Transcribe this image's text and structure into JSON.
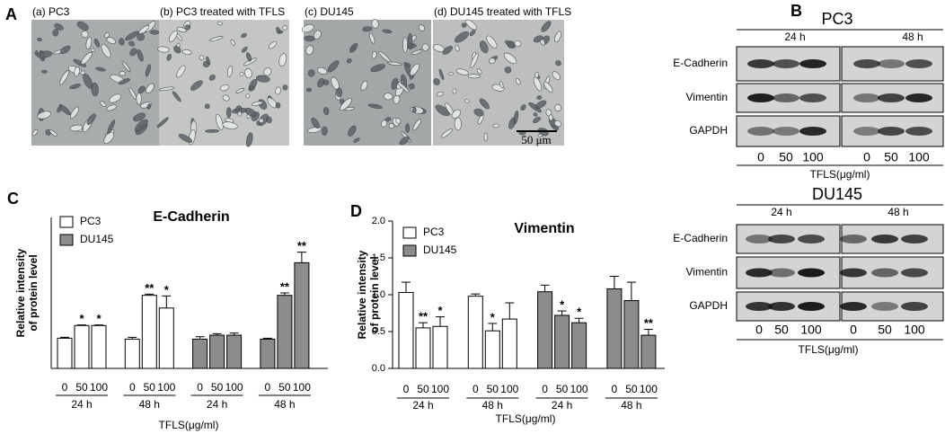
{
  "panel_a": {
    "letter": "A",
    "images": [
      "(a) PC3",
      "(b) PC3 treated with TFLS",
      "(c) DU145",
      "(d) DU145 treated with TFLS"
    ],
    "scale_bar": "50 μm"
  },
  "panel_b": {
    "letter": "B",
    "blots": [
      {
        "cell_line": "PC3",
        "times": [
          "24 h",
          "48 h"
        ],
        "proteins": [
          "E-Cadherin",
          "Vimentin",
          "GAPDH"
        ],
        "doses": [
          "0",
          "50",
          "100",
          "0",
          "50",
          "100"
        ],
        "xlabel": "TFLS(μg/ml)"
      },
      {
        "cell_line": "DU145",
        "times": [
          "24 h",
          "48 h"
        ],
        "proteins": [
          "E-Cadherin",
          "Vimentin",
          "GAPDH"
        ],
        "doses": [
          "0",
          "50",
          "100",
          "0",
          "50",
          "100"
        ],
        "xlabel": "TFLS(μg/ml)"
      }
    ]
  },
  "chart_data": [
    {
      "type": "bar",
      "panel": "C",
      "title": "E-Cadherin",
      "ylabel": [
        "Relative intensity",
        "of protein level"
      ],
      "xlabel": "TFLS(μg/ml)",
      "categories": [
        "0",
        "50",
        "100",
        "0",
        "50",
        "100",
        "0",
        "50",
        "100",
        "0",
        "50",
        "100"
      ],
      "groups": [
        "24 h",
        "48 h",
        "24 h",
        "48 h"
      ],
      "series": [
        {
          "name": "PC3",
          "color": "#ffffff",
          "values": [
            1.0,
            1.42,
            1.42,
            0.97,
            2.42,
            2.0,
            null,
            null,
            null,
            null,
            null,
            null
          ],
          "errors": [
            0.03,
            0.02,
            0.02,
            0.06,
            0.04,
            0.4,
            null,
            null,
            null,
            null,
            null,
            null
          ],
          "annotations": [
            null,
            "*",
            "*",
            null,
            "**",
            "*",
            null,
            null,
            null,
            null,
            null,
            null
          ]
        },
        {
          "name": "DU145",
          "color": "#8c8c8c",
          "values": [
            null,
            null,
            null,
            null,
            null,
            null,
            0.97,
            1.1,
            1.1,
            0.97,
            2.42,
            3.5
          ],
          "errors": [
            null,
            null,
            null,
            null,
            null,
            null,
            0.08,
            0.05,
            0.07,
            0.03,
            0.08,
            0.35
          ],
          "annotations": [
            null,
            null,
            null,
            null,
            null,
            null,
            null,
            null,
            null,
            null,
            "**",
            "**"
          ]
        }
      ],
      "ylim": [
        0,
        5
      ],
      "legend": "upper left"
    },
    {
      "type": "bar",
      "panel": "D",
      "title": "Vimentin",
      "ylabel": [
        "Relative intensity",
        "of protein level"
      ],
      "xlabel": "TFLS(μg/ml)",
      "categories": [
        "0",
        "50",
        "100",
        "0",
        "50",
        "100",
        "0",
        "50",
        "100",
        "0",
        "50",
        "100"
      ],
      "groups": [
        "24 h",
        "48 h",
        "24 h",
        "48 h"
      ],
      "series": [
        {
          "name": "PC3",
          "color": "#ffffff",
          "values": [
            1.03,
            0.55,
            0.57,
            0.98,
            0.51,
            0.67,
            null,
            null,
            null,
            null,
            null,
            null
          ],
          "errors": [
            0.14,
            0.07,
            0.13,
            0.03,
            0.1,
            0.22,
            null,
            null,
            null,
            null,
            null,
            null
          ],
          "annotations": [
            null,
            "**",
            "*",
            null,
            "*",
            null,
            null,
            null,
            null,
            null,
            null,
            null
          ]
        },
        {
          "name": "DU145",
          "color": "#8c8c8c",
          "values": [
            null,
            null,
            null,
            null,
            null,
            null,
            1.04,
            0.72,
            0.62,
            1.08,
            0.92,
            0.45
          ],
          "errors": [
            null,
            null,
            null,
            null,
            null,
            null,
            0.09,
            0.06,
            0.06,
            0.17,
            0.25,
            0.08
          ],
          "annotations": [
            null,
            null,
            null,
            null,
            null,
            null,
            null,
            "*",
            "*",
            null,
            null,
            "**"
          ]
        }
      ],
      "ylim": [
        0,
        2
      ],
      "yticks": [
        {
          "value": 0,
          "label": "0.0"
        },
        0.5,
        {
          "value": 1,
          "label": "1.0"
        },
        1.5,
        {
          "value": 2,
          "label": "2.0"
        }
      ],
      "legend": "upper left"
    }
  ]
}
